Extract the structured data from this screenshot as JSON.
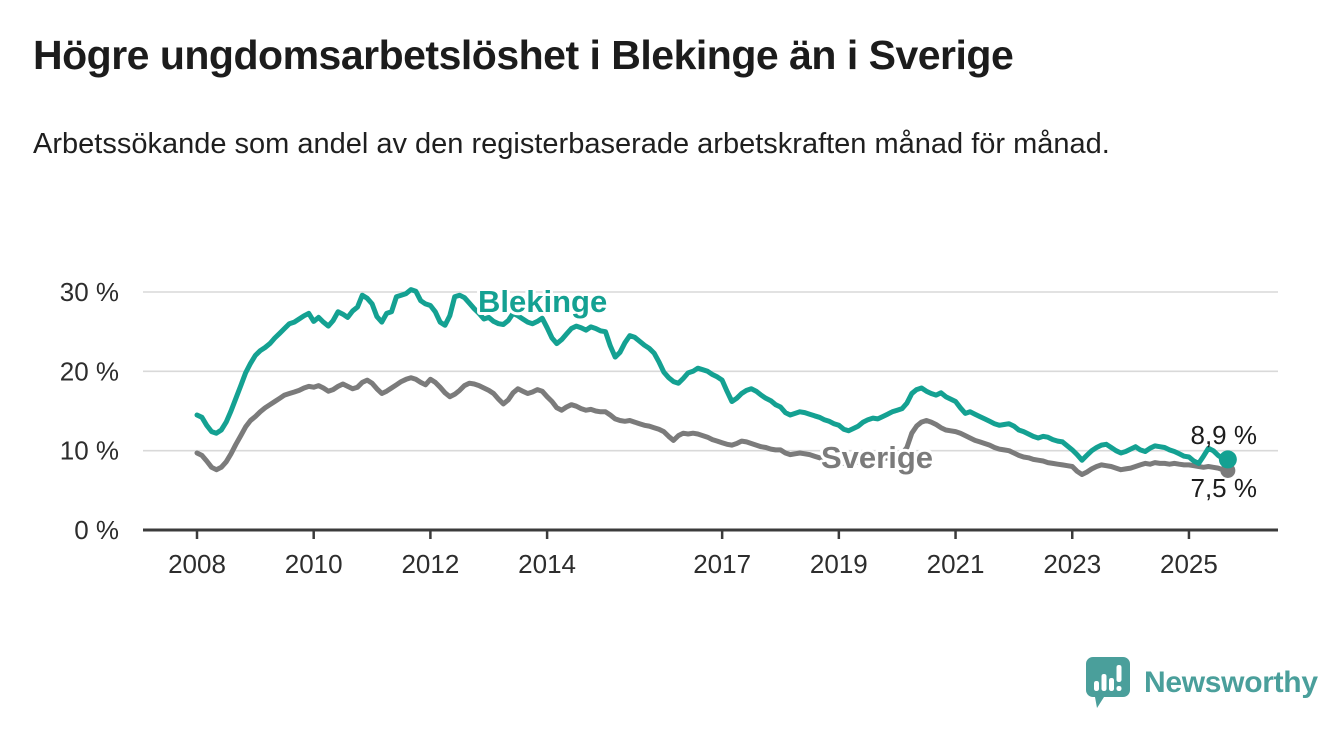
{
  "header": {
    "title": "Högre ungdomsarbetslöshet i Blekinge än i Sverige",
    "subtitle": "Arbetssökande som andel av den registerbaserade arbetskraften månad för månad."
  },
  "chart_data": {
    "type": "line",
    "title": "Högre ungdomsarbetslöshet i Blekinge än i Sverige",
    "xlabel": "",
    "ylabel": "",
    "x_unit": "year-month",
    "x_start_year": 2008,
    "points_per_year": 12,
    "x_tick_years": [
      2008,
      2010,
      2012,
      2014,
      2017,
      2019,
      2021,
      2023,
      2025
    ],
    "y_ticks": [
      {
        "value": 0,
        "label": "0 %"
      },
      {
        "value": 10,
        "label": "10 %"
      },
      {
        "value": 20,
        "label": "20 %"
      },
      {
        "value": 30,
        "label": "30 %"
      }
    ],
    "ylim": [
      0,
      32
    ],
    "grid": true,
    "legend": "inline-labels",
    "colors": {
      "blekinge": "#14a192",
      "sverige": "#7b7b7b",
      "grid": "#d9d9d9",
      "axis": "#3b3b3b",
      "tick_text": "#2d2d2d",
      "annotation_text": "#1d1d1d"
    },
    "series": [
      {
        "name": "Sverige",
        "color": "#7b7b7b",
        "end_label": "7,5 %",
        "values": [
          9.7,
          9.4,
          8.7,
          7.9,
          7.6,
          7.9,
          8.6,
          9.6,
          10.8,
          11.9,
          13.0,
          13.8,
          14.3,
          14.9,
          15.4,
          15.8,
          16.2,
          16.6,
          17.0,
          17.2,
          17.4,
          17.6,
          17.9,
          18.1,
          18.0,
          18.2,
          17.9,
          17.5,
          17.7,
          18.1,
          18.4,
          18.1,
          17.8,
          18.0,
          18.6,
          18.9,
          18.5,
          17.8,
          17.2,
          17.5,
          17.9,
          18.3,
          18.7,
          19.0,
          19.2,
          19.0,
          18.6,
          18.3,
          19.0,
          18.6,
          18.0,
          17.3,
          16.8,
          17.1,
          17.6,
          18.2,
          18.5,
          18.4,
          18.2,
          17.9,
          17.6,
          17.2,
          16.5,
          15.9,
          16.4,
          17.3,
          17.8,
          17.5,
          17.2,
          17.4,
          17.7,
          17.5,
          16.8,
          16.2,
          15.4,
          15.1,
          15.5,
          15.8,
          15.6,
          15.3,
          15.1,
          15.2,
          15.0,
          14.9,
          14.9,
          14.5,
          14.0,
          13.8,
          13.7,
          13.8,
          13.6,
          13.4,
          13.2,
          13.1,
          12.9,
          12.7,
          12.4,
          11.8,
          11.3,
          11.9,
          12.2,
          12.1,
          12.2,
          12.1,
          11.9,
          11.7,
          11.4,
          11.2,
          11.0,
          10.8,
          10.7,
          10.9,
          11.2,
          11.1,
          10.9,
          10.7,
          10.5,
          10.4,
          10.2,
          10.1,
          10.1,
          9.7,
          9.5,
          9.6,
          9.7,
          9.6,
          9.5,
          9.3,
          9.1,
          8.9,
          8.5,
          8.6,
          8.6,
          8.4,
          8.3,
          8.4,
          8.6,
          8.8,
          9.0,
          8.9,
          8.8,
          8.9,
          9.1,
          9.3,
          9.4,
          9.6,
          10.4,
          12.2,
          13.1,
          13.6,
          13.8,
          13.6,
          13.3,
          12.9,
          12.6,
          12.5,
          12.4,
          12.2,
          11.9,
          11.6,
          11.3,
          11.1,
          10.9,
          10.7,
          10.4,
          10.2,
          10.1,
          10.0,
          9.7,
          9.4,
          9.2,
          9.1,
          8.9,
          8.8,
          8.7,
          8.5,
          8.4,
          8.3,
          8.2,
          8.1,
          8.0,
          7.4,
          7.0,
          7.3,
          7.7,
          8.0,
          8.2,
          8.1,
          8.0,
          7.8,
          7.6,
          7.7,
          7.8,
          8.0,
          8.2,
          8.4,
          8.3,
          8.5,
          8.4,
          8.4,
          8.3,
          8.4,
          8.3,
          8.2,
          8.2,
          8.1,
          8.0,
          7.9,
          8.0,
          7.9,
          7.8,
          7.6,
          7.5
        ]
      },
      {
        "name": "Blekinge",
        "color": "#14a192",
        "end_label": "8,9 %",
        "values": [
          14.5,
          14.2,
          13.2,
          12.4,
          12.2,
          12.6,
          13.6,
          15.0,
          16.6,
          18.2,
          19.8,
          21.0,
          22.0,
          22.6,
          23.0,
          23.5,
          24.2,
          24.8,
          25.4,
          26.0,
          26.2,
          26.6,
          27.0,
          27.3,
          26.3,
          26.8,
          26.2,
          25.7,
          26.4,
          27.5,
          27.2,
          26.8,
          27.6,
          28.1,
          29.6,
          29.2,
          28.5,
          26.9,
          26.2,
          27.3,
          27.5,
          29.4,
          29.6,
          29.8,
          30.3,
          30.1,
          28.9,
          28.5,
          28.3,
          27.5,
          26.2,
          25.8,
          27.0,
          29.4,
          29.6,
          29.3,
          28.6,
          27.9,
          27.3,
          26.6,
          26.8,
          26.3,
          26.0,
          25.9,
          26.4,
          27.3,
          27.0,
          26.6,
          26.2,
          26.0,
          26.3,
          26.7,
          25.5,
          24.2,
          23.5,
          24.0,
          24.7,
          25.4,
          25.7,
          25.5,
          25.2,
          25.6,
          25.4,
          25.1,
          25.0,
          23.2,
          21.8,
          22.4,
          23.6,
          24.5,
          24.3,
          23.8,
          23.3,
          22.9,
          22.3,
          21.2,
          19.9,
          19.2,
          18.7,
          18.5,
          19.1,
          19.8,
          20.0,
          20.4,
          20.2,
          20.0,
          19.6,
          19.3,
          18.9,
          17.5,
          16.2,
          16.6,
          17.2,
          17.6,
          17.8,
          17.5,
          17.0,
          16.6,
          16.3,
          15.8,
          15.5,
          14.8,
          14.5,
          14.7,
          14.9,
          14.8,
          14.6,
          14.4,
          14.2,
          13.9,
          13.7,
          13.4,
          13.2,
          12.7,
          12.5,
          12.8,
          13.1,
          13.6,
          13.9,
          14.1,
          14.0,
          14.3,
          14.6,
          14.9,
          15.1,
          15.3,
          16.0,
          17.2,
          17.7,
          17.9,
          17.5,
          17.2,
          17.0,
          17.3,
          16.8,
          16.5,
          16.2,
          15.4,
          14.7,
          14.9,
          14.6,
          14.3,
          14.0,
          13.7,
          13.4,
          13.2,
          13.3,
          13.4,
          13.1,
          12.6,
          12.4,
          12.1,
          11.8,
          11.6,
          11.8,
          11.7,
          11.4,
          11.2,
          11.1,
          10.6,
          10.1,
          9.5,
          8.8,
          9.4,
          10.0,
          10.4,
          10.7,
          10.8,
          10.4,
          10.0,
          9.7,
          9.9,
          10.2,
          10.5,
          10.1,
          9.9,
          10.3,
          10.6,
          10.5,
          10.4,
          10.1,
          9.9,
          9.6,
          9.3,
          9.2,
          8.7,
          8.4,
          9.3,
          10.3,
          10.0,
          9.4,
          9.0,
          8.9
        ]
      }
    ]
  },
  "footer": {
    "brand": "Newsworthy",
    "brand_color": "#4a9f9b",
    "logo_icon": "newsworthy-speech-bubble-chart-icon"
  }
}
